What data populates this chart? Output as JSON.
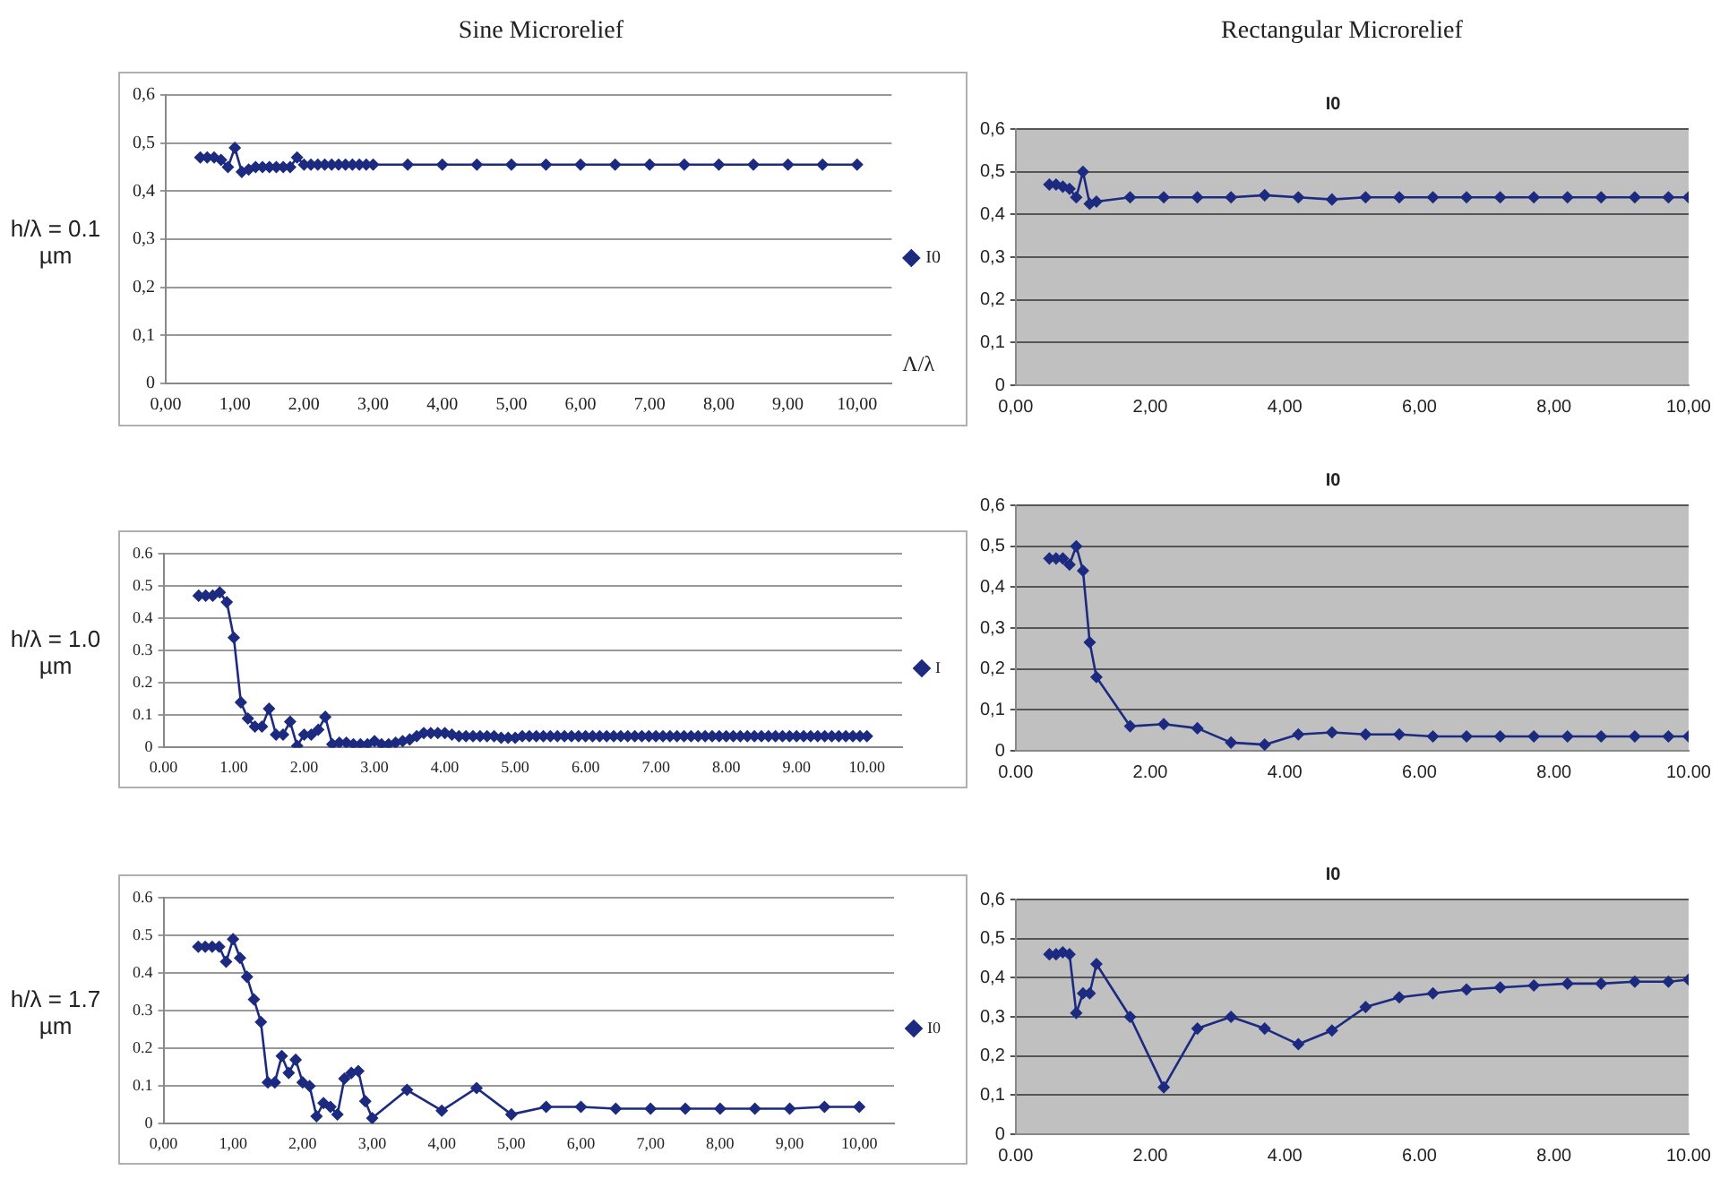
{
  "chart_data": [
    {
      "type": "line",
      "title": "Sine Microrelief",
      "ylabel": "h/λ = 0.1 µm",
      "xlabel": "Λ/λ",
      "marker": "diamond",
      "line_style": "solid",
      "grid": "y",
      "legend": "right",
      "xlim": [
        0,
        10.5
      ],
      "xticks": [
        {
          "value": 0,
          "label": "0,00"
        },
        {
          "value": 1,
          "label": "1,00"
        },
        {
          "value": 2,
          "label": "2,00"
        },
        {
          "value": 3,
          "label": "3,00"
        },
        {
          "value": 4,
          "label": "4,00"
        },
        {
          "value": 5,
          "label": "5,00"
        },
        {
          "value": 6,
          "label": "6,00"
        },
        {
          "value": 7,
          "label": "7,00"
        },
        {
          "value": 8,
          "label": "8,00"
        },
        {
          "value": 9,
          "label": "9,00"
        },
        {
          "value": 10,
          "label": "10,00"
        }
      ],
      "ylim": [
        0,
        0.6
      ],
      "yticks": [
        0,
        {
          "value": 0.1,
          "label": "0,1"
        },
        {
          "value": 0.2,
          "label": "0,2"
        },
        {
          "value": 0.3,
          "label": "0,3"
        },
        {
          "value": 0.4,
          "label": "0,4"
        },
        {
          "value": 0.5,
          "label": "0,5"
        },
        {
          "value": 0.6,
          "label": "0,6"
        }
      ],
      "series": [
        {
          "name": "I0",
          "color": "#1c2a80",
          "x": [
            0.5,
            0.6,
            0.7,
            0.8,
            0.9,
            1,
            1.1,
            1.2,
            1.3,
            1.4,
            1.5,
            1.6,
            1.7,
            1.8,
            1.9,
            2,
            2.1,
            2.2,
            2.3,
            2.4,
            2.5,
            2.6,
            2.7,
            2.8,
            2.9,
            3,
            3.5,
            4,
            4.5,
            5,
            5.5,
            6,
            6.5,
            7,
            7.5,
            8,
            8.5,
            9,
            9.5,
            10
          ],
          "values": [
            0.47,
            0.47,
            0.47,
            0.465,
            0.45,
            0.49,
            0.44,
            0.445,
            0.45,
            0.45,
            0.45,
            0.45,
            0.45,
            0.45,
            0.47,
            0.455,
            0.455,
            0.455,
            0.455,
            0.455,
            0.455,
            0.455,
            0.455,
            0.455,
            0.455,
            0.455,
            0.455,
            0.455,
            0.455,
            0.455,
            0.455,
            0.455,
            0.455,
            0.455,
            0.455,
            0.455,
            0.455,
            0.455,
            0.455,
            0.455
          ]
        }
      ]
    },
    {
      "type": "line",
      "title": "Rectangular Microrelief",
      "subtitle": "I0",
      "marker": "diamond",
      "line_style": "solid",
      "grid": "y",
      "xlim": [
        0,
        10
      ],
      "xticks": [
        {
          "value": 0,
          "label": "0,00"
        },
        {
          "value": 2,
          "label": "2,00"
        },
        {
          "value": 4,
          "label": "4,00"
        },
        {
          "value": 6,
          "label": "6,00"
        },
        {
          "value": 8,
          "label": "8,00"
        },
        {
          "value": 10,
          "label": "10,00"
        }
      ],
      "ylim": [
        0,
        0.6
      ],
      "yticks": [
        0,
        {
          "value": 0.1,
          "label": "0,1"
        },
        {
          "value": 0.2,
          "label": "0,2"
        },
        {
          "value": 0.3,
          "label": "0,3"
        },
        {
          "value": 0.4,
          "label": "0,4"
        },
        {
          "value": 0.5,
          "label": "0,5"
        },
        {
          "value": 0.6,
          "label": "0,6"
        }
      ],
      "series": [
        {
          "color": "#1c2a80",
          "x": [
            0.5,
            0.6,
            0.7,
            0.8,
            0.9,
            1,
            1.1,
            1.2,
            1.7,
            2.2,
            2.7,
            3.2,
            3.7,
            4.2,
            4.7,
            5.2,
            5.7,
            6.2,
            6.7,
            7.2,
            7.7,
            8.2,
            8.7,
            9.2,
            9.7,
            10
          ],
          "values": [
            0.47,
            0.47,
            0.465,
            0.46,
            0.44,
            0.5,
            0.425,
            0.43,
            0.44,
            0.44,
            0.44,
            0.44,
            0.445,
            0.44,
            0.435,
            0.44,
            0.44,
            0.44,
            0.44,
            0.44,
            0.44,
            0.44,
            0.44,
            0.44,
            0.44,
            0.44
          ]
        }
      ]
    },
    {
      "type": "line",
      "ylabel": "h/λ = 1.0 µm",
      "marker": "diamond",
      "line_style": "solid",
      "grid": "y",
      "legend": "right",
      "xlim": [
        0,
        10.5
      ],
      "xticks": [
        {
          "value": 0,
          "label": "0.00"
        },
        {
          "value": 1,
          "label": "1.00"
        },
        {
          "value": 2,
          "label": "2.00"
        },
        {
          "value": 3,
          "label": "3.00"
        },
        {
          "value": 4,
          "label": "4.00"
        },
        {
          "value": 5,
          "label": "5.00"
        },
        {
          "value": 6,
          "label": "6.00"
        },
        {
          "value": 7,
          "label": "7.00"
        },
        {
          "value": 8,
          "label": "8.00"
        },
        {
          "value": 9,
          "label": "9.00"
        },
        {
          "value": 10,
          "label": "10.00"
        }
      ],
      "ylim": [
        0,
        0.6
      ],
      "yticks": [
        0,
        0.1,
        0.2,
        0.3,
        0.4,
        0.5,
        0.6
      ],
      "series": [
        {
          "name": "I",
          "color": "#1c2a80",
          "x": [
            0.5,
            0.6,
            0.7,
            0.8,
            0.9,
            1,
            1.1,
            1.2,
            1.3,
            1.4,
            1.5,
            1.6,
            1.7,
            1.8,
            1.9,
            2,
            2.1,
            2.2,
            2.3,
            2.4,
            2.5,
            2.6,
            2.7,
            2.8,
            2.9,
            3,
            3.1,
            3.2,
            3.3,
            3.4,
            3.5,
            3.6,
            3.7,
            3.8,
            3.9,
            4,
            4.1,
            4.2,
            4.3,
            4.4,
            4.5,
            4.6,
            4.7,
            4.8,
            4.9,
            5,
            5.1,
            5.2,
            5.3,
            5.4,
            5.5,
            5.6,
            5.7,
            5.8,
            5.9,
            6,
            6.1,
            6.2,
            6.3,
            6.4,
            6.5,
            6.6,
            6.7,
            6.8,
            6.9,
            7,
            7.1,
            7.2,
            7.3,
            7.4,
            7.5,
            7.6,
            7.7,
            7.8,
            7.9,
            8,
            8.1,
            8.2,
            8.3,
            8.4,
            8.5,
            8.6,
            8.7,
            8.8,
            8.9,
            9,
            9.1,
            9.2,
            9.3,
            9.4,
            9.5,
            9.6,
            9.7,
            9.8,
            9.9,
            10
          ],
          "values": [
            0.47,
            0.47,
            0.47,
            0.48,
            0.45,
            0.34,
            0.14,
            0.09,
            0.065,
            0.065,
            0.12,
            0.04,
            0.04,
            0.08,
            0.005,
            0.04,
            0.04,
            0.055,
            0.095,
            0.01,
            0.015,
            0.015,
            0.01,
            0.01,
            0.01,
            0.02,
            0.01,
            0.01,
            0.015,
            0.02,
            0.025,
            0.035,
            0.045,
            0.045,
            0.045,
            0.045,
            0.04,
            0.035,
            0.035,
            0.035,
            0.035,
            0.035,
            0.035,
            0.03,
            0.03,
            0.03,
            0.035,
            0.035,
            0.035,
            0.035,
            0.035,
            0.035,
            0.035,
            0.035,
            0.035,
            0.035,
            0.035,
            0.035,
            0.035,
            0.035,
            0.035,
            0.035,
            0.035,
            0.035,
            0.035,
            0.035,
            0.035,
            0.035,
            0.035,
            0.035,
            0.035,
            0.035,
            0.035,
            0.035,
            0.035,
            0.035,
            0.035,
            0.035,
            0.035,
            0.035,
            0.035,
            0.035,
            0.035,
            0.035,
            0.035,
            0.035,
            0.035,
            0.035,
            0.035,
            0.035,
            0.035,
            0.035,
            0.035,
            0.035,
            0.035,
            0.035
          ]
        }
      ]
    },
    {
      "type": "line",
      "subtitle": "I0",
      "marker": "diamond",
      "line_style": "solid",
      "grid": "y",
      "xlim": [
        0,
        10
      ],
      "xticks": [
        {
          "value": 0,
          "label": "0.00"
        },
        {
          "value": 2,
          "label": "2.00"
        },
        {
          "value": 4,
          "label": "4.00"
        },
        {
          "value": 6,
          "label": "6.00"
        },
        {
          "value": 8,
          "label": "8.00"
        },
        {
          "value": 10,
          "label": "10.00"
        }
      ],
      "ylim": [
        0,
        0.6
      ],
      "yticks": [
        0,
        {
          "value": 0.1,
          "label": "0,1"
        },
        {
          "value": 0.2,
          "label": "0,2"
        },
        {
          "value": 0.3,
          "label": "0,3"
        },
        {
          "value": 0.4,
          "label": "0,4"
        },
        {
          "value": 0.5,
          "label": "0,5"
        },
        {
          "value": 0.6,
          "label": "0,6"
        }
      ],
      "series": [
        {
          "color": "#1c2a80",
          "x": [
            0.5,
            0.6,
            0.7,
            0.8,
            0.9,
            1,
            1.1,
            1.2,
            1.7,
            2.2,
            2.7,
            3.2,
            3.7,
            4.2,
            4.7,
            5.2,
            5.7,
            6.2,
            6.7,
            7.2,
            7.7,
            8.2,
            8.7,
            9.2,
            9.7,
            10
          ],
          "values": [
            0.47,
            0.47,
            0.47,
            0.455,
            0.5,
            0.44,
            0.265,
            0.18,
            0.06,
            0.065,
            0.055,
            0.02,
            0.015,
            0.04,
            0.045,
            0.04,
            0.04,
            0.035,
            0.035,
            0.035,
            0.035,
            0.035,
            0.035,
            0.035,
            0.035,
            0.035
          ]
        }
      ]
    },
    {
      "type": "line",
      "ylabel": "h/λ = 1.7 µm",
      "marker": "diamond",
      "line_style": "solid",
      "grid": "y",
      "legend": "right",
      "xlim": [
        0,
        10.5
      ],
      "xticks": [
        {
          "value": 0,
          "label": "0,00"
        },
        {
          "value": 1,
          "label": "1,00"
        },
        {
          "value": 2,
          "label": "2,00"
        },
        {
          "value": 3,
          "label": "3,00"
        },
        {
          "value": 4,
          "label": "4,00"
        },
        {
          "value": 5,
          "label": "5,00"
        },
        {
          "value": 6,
          "label": "6,00"
        },
        {
          "value": 7,
          "label": "7,00"
        },
        {
          "value": 8,
          "label": "8,00"
        },
        {
          "value": 9,
          "label": "9,00"
        },
        {
          "value": 10,
          "label": "10,00"
        }
      ],
      "ylim": [
        0,
        0.6
      ],
      "yticks": [
        0,
        0.1,
        0.2,
        0.3,
        0.4,
        0.5,
        0.6
      ],
      "series": [
        {
          "name": "I0",
          "color": "#1c2a80",
          "x": [
            0.5,
            0.6,
            0.7,
            0.8,
            0.9,
            1,
            1.1,
            1.2,
            1.3,
            1.4,
            1.5,
            1.6,
            1.7,
            1.8,
            1.9,
            2,
            2.1,
            2.2,
            2.3,
            2.4,
            2.5,
            2.6,
            2.7,
            2.8,
            2.9,
            3,
            3.5,
            4,
            4.5,
            5,
            5.5,
            6,
            6.5,
            7,
            7.5,
            8,
            8.5,
            9,
            9.5,
            10
          ],
          "values": [
            0.47,
            0.47,
            0.47,
            0.47,
            0.43,
            0.49,
            0.44,
            0.39,
            0.33,
            0.27,
            0.11,
            0.11,
            0.18,
            0.135,
            0.17,
            0.11,
            0.1,
            0.02,
            0.055,
            0.045,
            0.025,
            0.12,
            0.135,
            0.14,
            0.06,
            0.015,
            0.09,
            0.035,
            0.095,
            0.025,
            0.045,
            0.045,
            0.04,
            0.04,
            0.04,
            0.04,
            0.04,
            0.04,
            0.045,
            0.045
          ]
        }
      ]
    },
    {
      "type": "line",
      "subtitle": "I0",
      "marker": "diamond",
      "line_style": "solid",
      "grid": "y",
      "xlim": [
        0,
        10
      ],
      "xticks": [
        {
          "value": 0,
          "label": "0.00"
        },
        {
          "value": 2,
          "label": "2.00"
        },
        {
          "value": 4,
          "label": "4.00"
        },
        {
          "value": 6,
          "label": "6.00"
        },
        {
          "value": 8,
          "label": "8.00"
        },
        {
          "value": 10,
          "label": "10.00"
        }
      ],
      "ylim": [
        0,
        0.6
      ],
      "yticks": [
        0,
        {
          "value": 0.1,
          "label": "0,1"
        },
        {
          "value": 0.2,
          "label": "0,2"
        },
        {
          "value": 0.3,
          "label": "0,3"
        },
        {
          "value": 0.4,
          "label": "0,4"
        },
        {
          "value": 0.5,
          "label": "0,5"
        },
        {
          "value": 0.6,
          "label": "0,6"
        }
      ],
      "series": [
        {
          "color": "#1c2a80",
          "x": [
            0.5,
            0.6,
            0.7,
            0.8,
            0.9,
            1,
            1.1,
            1.2,
            1.7,
            2.2,
            2.7,
            3.2,
            3.7,
            4.2,
            4.7,
            5.2,
            5.7,
            6.2,
            6.7,
            7.2,
            7.7,
            8.2,
            8.7,
            9.2,
            9.7,
            10
          ],
          "values": [
            0.46,
            0.46,
            0.465,
            0.46,
            0.31,
            0.36,
            0.36,
            0.435,
            0.3,
            0.12,
            0.27,
            0.3,
            0.27,
            0.23,
            0.265,
            0.325,
            0.35,
            0.36,
            0.37,
            0.375,
            0.38,
            0.385,
            0.385,
            0.39,
            0.39,
            0.395
          ]
        }
      ]
    }
  ]
}
